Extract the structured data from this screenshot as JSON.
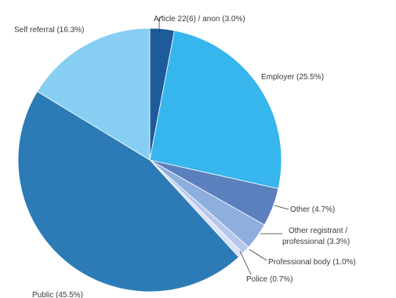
{
  "chart_data": {
    "type": "pie",
    "title": "",
    "slices": [
      {
        "label": "Article 22(6) / anon (3.0%)",
        "value": 3.0,
        "color": "#1d5b9b"
      },
      {
        "label": "Employer (25.5%)",
        "value": 25.5,
        "color": "#37b6ee"
      },
      {
        "label": "Other (4.7%)",
        "value": 4.7,
        "color": "#5b80bd"
      },
      {
        "label": "Other registrant / professional (3.3%)",
        "value": 3.3,
        "color": "#8eaede"
      },
      {
        "label": "Professional body (1.0%)",
        "value": 1.0,
        "color": "#b6c7ea"
      },
      {
        "label": "Police (0.7%)",
        "value": 0.7,
        "color": "#d9e1f3"
      },
      {
        "label": "Public (45.5%)",
        "value": 45.5,
        "color": "#2c7bb6"
      },
      {
        "label": "Self referral (16.3%)",
        "value": 16.3,
        "color": "#87cff2"
      }
    ],
    "labels": {
      "article": "Article 22(6) / anon (3.0%)",
      "employer": "Employer (25.5%)",
      "other": "Other (4.7%)",
      "other_registrant_line1": "Other registrant /",
      "other_registrant_line2": "professional (3.3%)",
      "professional_body": "Professional body (1.0%)",
      "police": "Police (0.7%)",
      "public": "Public (45.5%)",
      "self_referral": "Self referral (16.3%)"
    }
  }
}
